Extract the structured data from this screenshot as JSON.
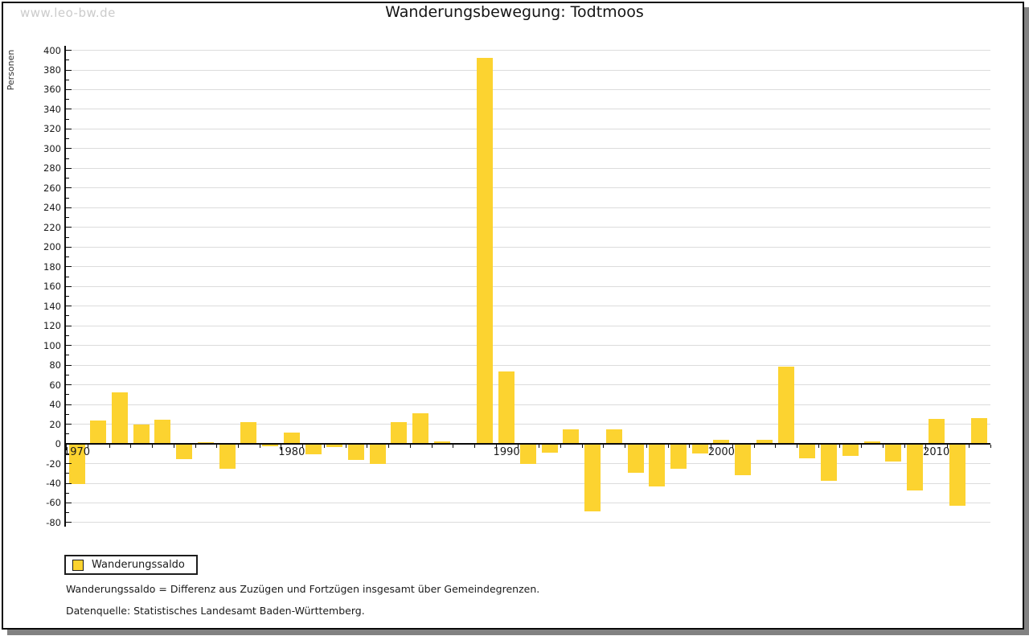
{
  "watermark": "www.leo-bw.de",
  "title": "Wanderungsbewegung: Todtmoos",
  "legend": {
    "label": "Wanderungssaldo"
  },
  "footnotes": {
    "definition": "Wanderungssaldo = Differenz aus Zuzügen und Fortzügen insgesamt über Gemeindegrenzen.",
    "source": "Datenquelle: Statistisches Landesamt Baden-Württemberg."
  },
  "colors": {
    "bar": "#FCD330",
    "grid": "#DCDCDC",
    "axis": "#0A0A0A",
    "frame_shadow": "#828282",
    "watermark_text": "#CBCBCB"
  },
  "chart_data": {
    "type": "bar",
    "title": "Wanderungsbewegung: Todtmoos",
    "ylabel": "Personen",
    "xlabel": "",
    "ylim": [
      -80,
      400
    ],
    "ytick_step": 20,
    "ytick_minor_step": 10,
    "grid": true,
    "legend_position": "bottom-left",
    "series_name": "Wanderungssaldo",
    "xticks_labeled": [
      1970,
      1980,
      1990,
      2000,
      2010
    ],
    "x": [
      1970,
      1971,
      1972,
      1973,
      1974,
      1975,
      1976,
      1977,
      1978,
      1979,
      1980,
      1981,
      1982,
      1983,
      1984,
      1985,
      1986,
      1987,
      1988,
      1989,
      1990,
      1991,
      1992,
      1993,
      1994,
      1995,
      1996,
      1997,
      1998,
      1999,
      2000,
      2001,
      2002,
      2003,
      2004,
      2005,
      2006,
      2007,
      2008,
      2009,
      2010,
      2011,
      2012
    ],
    "values": [
      -41,
      23,
      52,
      19,
      24,
      -16,
      1,
      -26,
      22,
      -3,
      11,
      -11,
      -4,
      -17,
      -21,
      22,
      31,
      2,
      0,
      392,
      73,
      -21,
      -9,
      14,
      -69,
      14,
      -30,
      -44,
      -26,
      -10,
      4,
      -32,
      4,
      78,
      -15,
      -38,
      -13,
      2,
      -18,
      -48,
      25,
      -63,
      26
    ]
  }
}
